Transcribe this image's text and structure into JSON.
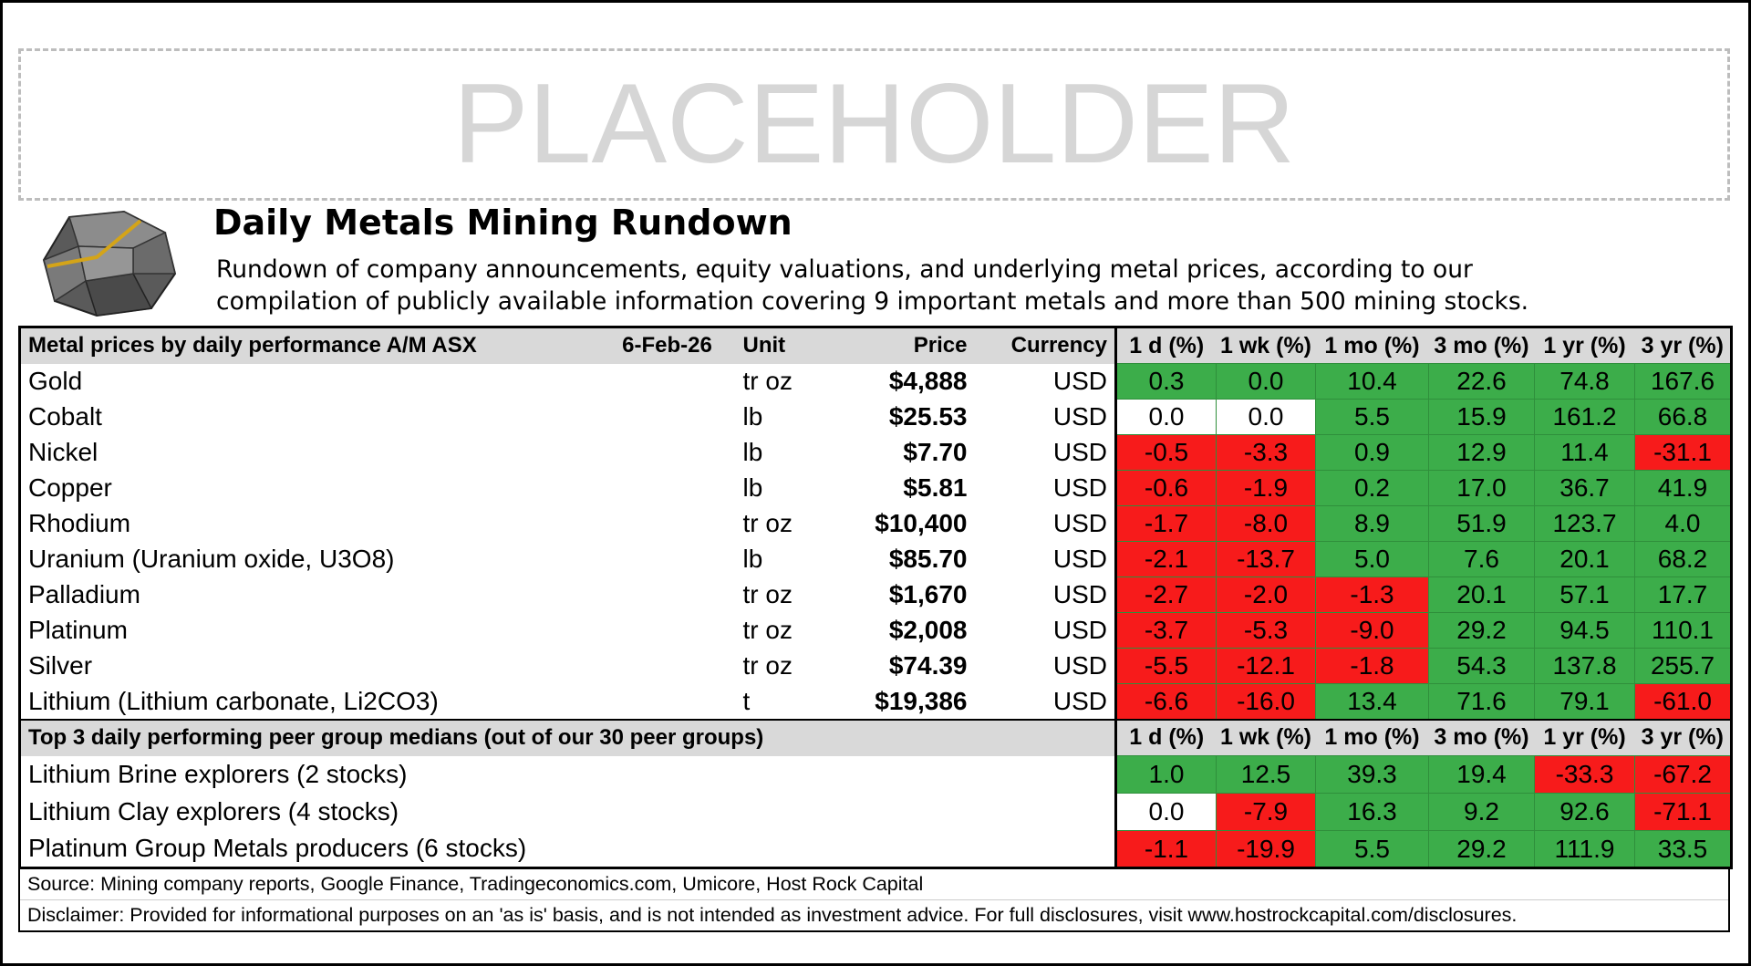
{
  "placeholder": "PLACEHOLDER",
  "header": {
    "title": "Daily Metals Mining Rundown",
    "subtitle_lines": [
      "Rundown of company announcements, equity valuations, and underlying metal prices, according to our",
      "compilation of publicly available information covering 9 important metals and more than 500 mining stocks."
    ]
  },
  "table": {
    "title": "Metal prices by daily performance  A/M ASX",
    "date": "6-Feb-26",
    "columns": [
      "Unit",
      "Price",
      "Currency",
      "1 d (%)",
      "1 wk (%)",
      "1 mo (%)",
      "3 mo (%)",
      "1 yr (%)",
      "3 yr (%)"
    ],
    "rows": [
      {
        "metal": "Gold",
        "unit": "tr oz",
        "price": "$4,888",
        "currency": "USD",
        "changes": [
          "0.3",
          "0.0",
          "10.4",
          "22.6",
          "74.8",
          "167.6"
        ],
        "colors": [
          "#3cad4a",
          "#3cad4a",
          "#3cad4a",
          "#3cad4a",
          "#3cad4a",
          "#3cad4a"
        ]
      },
      {
        "metal": "Cobalt",
        "unit": "lb",
        "price": "$25.53",
        "currency": "USD",
        "changes": [
          "0.0",
          "0.0",
          "5.5",
          "15.9",
          "161.2",
          "66.8"
        ],
        "colors": [
          "#ffffff",
          "#ffffff",
          "#3cad4a",
          "#3cad4a",
          "#3cad4a",
          "#3cad4a"
        ]
      },
      {
        "metal": "Nickel",
        "unit": "lb",
        "price": "$7.70",
        "currency": "USD",
        "changes": [
          "-0.5",
          "-3.3",
          "0.9",
          "12.9",
          "11.4",
          "-31.1"
        ],
        "colors": [
          "#f71b1b",
          "#f71b1b",
          "#3cad4a",
          "#3cad4a",
          "#3cad4a",
          "#f71b1b"
        ]
      },
      {
        "metal": "Copper",
        "unit": "lb",
        "price": "$5.81",
        "currency": "USD",
        "changes": [
          "-0.6",
          "-1.9",
          "0.2",
          "17.0",
          "36.7",
          "41.9"
        ],
        "colors": [
          "#f71b1b",
          "#f71b1b",
          "#3cad4a",
          "#3cad4a",
          "#3cad4a",
          "#3cad4a"
        ]
      },
      {
        "metal": "Rhodium",
        "unit": "tr oz",
        "price": "$10,400",
        "currency": "USD",
        "changes": [
          "-1.7",
          "-8.0",
          "8.9",
          "51.9",
          "123.7",
          "4.0"
        ],
        "colors": [
          "#f71b1b",
          "#f71b1b",
          "#3cad4a",
          "#3cad4a",
          "#3cad4a",
          "#3cad4a"
        ]
      },
      {
        "metal": "Uranium (Uranium oxide, U3O8)",
        "unit": "lb",
        "price": "$85.70",
        "currency": "USD",
        "changes": [
          "-2.1",
          "-13.7",
          "5.0",
          "7.6",
          "20.1",
          "68.2"
        ],
        "colors": [
          "#f71b1b",
          "#f71b1b",
          "#3cad4a",
          "#3cad4a",
          "#3cad4a",
          "#3cad4a"
        ]
      },
      {
        "metal": "Palladium",
        "unit": "tr oz",
        "price": "$1,670",
        "currency": "USD",
        "changes": [
          "-2.7",
          "-2.0",
          "-1.3",
          "20.1",
          "57.1",
          "17.7"
        ],
        "colors": [
          "#f71b1b",
          "#f71b1b",
          "#f71b1b",
          "#3cad4a",
          "#3cad4a",
          "#3cad4a"
        ]
      },
      {
        "metal": "Platinum",
        "unit": "tr oz",
        "price": "$2,008",
        "currency": "USD",
        "changes": [
          "-3.7",
          "-5.3",
          "-9.0",
          "29.2",
          "94.5",
          "110.1"
        ],
        "colors": [
          "#f71b1b",
          "#f71b1b",
          "#f71b1b",
          "#3cad4a",
          "#3cad4a",
          "#3cad4a"
        ]
      },
      {
        "metal": "Silver",
        "unit": "tr oz",
        "price": "$74.39",
        "currency": "USD",
        "changes": [
          "-5.5",
          "-12.1",
          "-1.8",
          "54.3",
          "137.8",
          "255.7"
        ],
        "colors": [
          "#f71b1b",
          "#f71b1b",
          "#f71b1b",
          "#3cad4a",
          "#3cad4a",
          "#3cad4a"
        ]
      },
      {
        "metal": "Lithium (Lithium carbonate, Li2CO3)",
        "unit": "t",
        "price": "$19,386",
        "currency": "USD",
        "changes": [
          "-6.6",
          "-16.0",
          "13.4",
          "71.6",
          "79.1",
          "-61.0"
        ],
        "colors": [
          "#f71b1b",
          "#f71b1b",
          "#3cad4a",
          "#3cad4a",
          "#3cad4a",
          "#f71b1b"
        ]
      }
    ]
  },
  "peer_table": {
    "title": "Top 3 daily performing peer group medians (out of our 30 peer groups)",
    "columns": [
      "1 d (%)",
      "1 wk (%)",
      "1 mo (%)",
      "3 mo (%)",
      "1 yr (%)",
      "3 yr (%)"
    ],
    "rows": [
      {
        "group": "Lithium Brine explorers (2 stocks)",
        "changes": [
          "1.0",
          "12.5",
          "39.3",
          "19.4",
          "-33.3",
          "-67.2"
        ],
        "colors": [
          "#3cad4a",
          "#3cad4a",
          "#3cad4a",
          "#3cad4a",
          "#f71b1b",
          "#f71b1b"
        ]
      },
      {
        "group": "Lithium Clay explorers (4 stocks)",
        "changes": [
          "0.0",
          "-7.9",
          "16.3",
          "9.2",
          "92.6",
          "-71.1"
        ],
        "colors": [
          "#ffffff",
          "#f71b1b",
          "#3cad4a",
          "#3cad4a",
          "#3cad4a",
          "#f71b1b"
        ]
      },
      {
        "group": "Platinum Group Metals producers (6 stocks)",
        "changes": [
          "-1.1",
          "-19.9",
          "5.5",
          "29.2",
          "111.9",
          "33.5"
        ],
        "colors": [
          "#f71b1b",
          "#f71b1b",
          "#3cad4a",
          "#3cad4a",
          "#3cad4a",
          "#3cad4a"
        ]
      }
    ]
  },
  "source": "Source: Mining company reports, Google Finance, Tradingeconomics.com, Umicore, Host Rock Capital",
  "disclaimer": "Disclaimer: Provided for informational purposes on an 'as is' basis, and is not intended as investment advice. For full disclosures, visit www.hostrockcapital.com/disclosures."
}
